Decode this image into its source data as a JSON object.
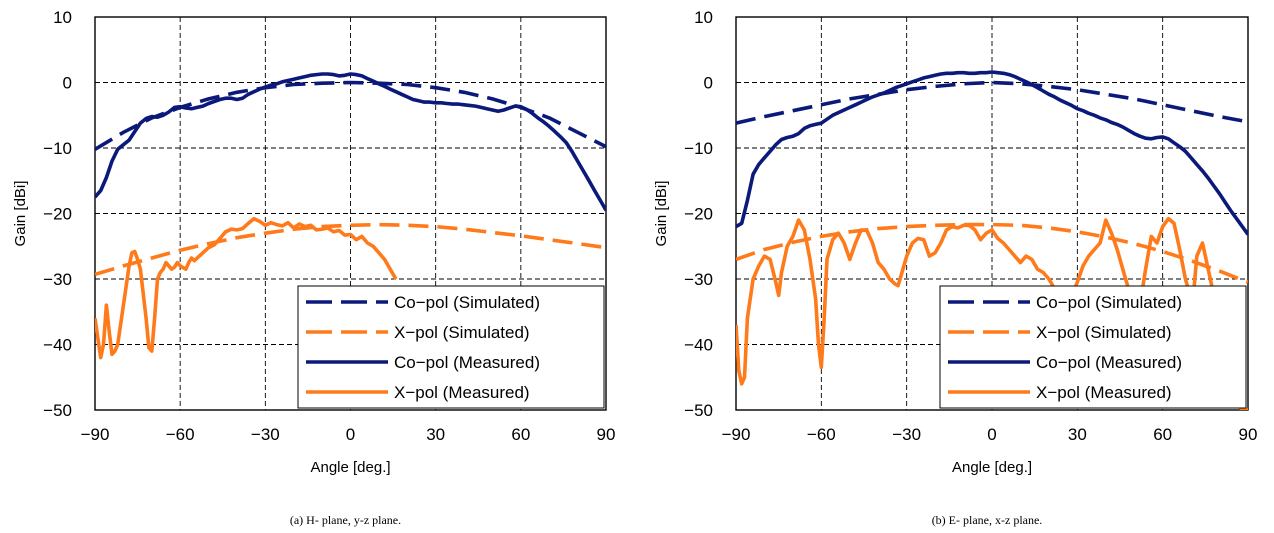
{
  "colors": {
    "co": "#0b1a7a",
    "x": "#ff7a1a",
    "grid": "#000000"
  },
  "chart_data": [
    {
      "type": "line",
      "caption": "(a)  H- plane, y-z plane.",
      "xlabel": "Angle [deg.]",
      "ylabel": "Gain [dBi]",
      "xlim": [
        -90,
        90
      ],
      "ylim": [
        -50,
        10
      ],
      "xticks": [
        -90,
        -60,
        -30,
        0,
        30,
        60,
        90
      ],
      "yticks": [
        10,
        0,
        -10,
        -20,
        -30,
        -40,
        -50
      ],
      "xtick_labels": [
        "−90",
        "−60",
        "−30",
        "0",
        "30",
        "60",
        "90"
      ],
      "ytick_labels": [
        "10",
        "0",
        "−10",
        "−20",
        "−30",
        "−40",
        "−50"
      ],
      "grid": true,
      "legend": {
        "position": "bottom-right"
      },
      "series": [
        {
          "name": "Co−pol (Simulated)",
          "color_key": "co",
          "style": "dashed",
          "x": [
            -90,
            -80,
            -70,
            -60,
            -50,
            -40,
            -30,
            -20,
            -10,
            0,
            10,
            20,
            30,
            40,
            50,
            60,
            70,
            80,
            90
          ],
          "y": [
            -10.2,
            -7.6,
            -5.4,
            -3.8,
            -2.5,
            -1.5,
            -0.8,
            -0.3,
            -0.1,
            0,
            -0.1,
            -0.3,
            -0.8,
            -1.5,
            -2.5,
            -3.8,
            -5.4,
            -7.6,
            -9.8
          ]
        },
        {
          "name": "X−pol (Simulated)",
          "color_key": "x",
          "style": "dashed",
          "x": [
            -90,
            -80,
            -70,
            -60,
            -50,
            -40,
            -30,
            -20,
            -10,
            0,
            10,
            20,
            30,
            40,
            50,
            60,
            70,
            80,
            90
          ],
          "y": [
            -29.3,
            -28,
            -26.8,
            -25.6,
            -24.6,
            -23.7,
            -23,
            -22.4,
            -22,
            -21.8,
            -21.7,
            -21.8,
            -22,
            -22.4,
            -22.9,
            -23.4,
            -24,
            -24.6,
            -25.2
          ]
        },
        {
          "name": "Co−pol (Measured)",
          "color_key": "co",
          "style": "solid",
          "x": [
            -90,
            -88,
            -86,
            -84,
            -82,
            -80,
            -78,
            -76,
            -74,
            -72,
            -70,
            -68,
            -66,
            -64,
            -62,
            -60,
            -58,
            -56,
            -54,
            -52,
            -50,
            -48,
            -46,
            -44,
            -42,
            -40,
            -38,
            -36,
            -34,
            -32,
            -30,
            -28,
            -26,
            -24,
            -22,
            -20,
            -18,
            -16,
            -14,
            -12,
            -10,
            -8,
            -6,
            -4,
            -2,
            0,
            2,
            4,
            6,
            8,
            10,
            12,
            14,
            16,
            18,
            20,
            22,
            24,
            26,
            28,
            30,
            32,
            34,
            36,
            38,
            40,
            42,
            44,
            46,
            48,
            50,
            52,
            54,
            56,
            58,
            60,
            62,
            64,
            66,
            68,
            70,
            72,
            74,
            76,
            78,
            80,
            82,
            84,
            86,
            88,
            90
          ],
          "y": [
            -17.5,
            -16.5,
            -14.5,
            -12,
            -10.2,
            -9.5,
            -8.8,
            -7.5,
            -6.2,
            -5.5,
            -5.2,
            -5.3,
            -5.0,
            -4.5,
            -3.8,
            -3.7,
            -3.9,
            -4.0,
            -3.8,
            -3.6,
            -3.2,
            -2.9,
            -2.6,
            -2.4,
            -2.4,
            -2.6,
            -2.4,
            -1.8,
            -1.4,
            -1.0,
            -0.7,
            -0.4,
            -0.2,
            0.1,
            0.3,
            0.5,
            0.7,
            0.9,
            1.1,
            1.2,
            1.3,
            1.3,
            1.2,
            1.0,
            1.1,
            1.3,
            1.2,
            1.0,
            0.6,
            0.2,
            -0.2,
            -0.6,
            -1.0,
            -1.4,
            -1.8,
            -2.2,
            -2.6,
            -2.8,
            -3.0,
            -3.0,
            -3.1,
            -3.1,
            -3.2,
            -3.3,
            -3.3,
            -3.4,
            -3.5,
            -3.6,
            -3.8,
            -4.0,
            -4.2,
            -4.4,
            -4.2,
            -3.9,
            -3.6,
            -3.7,
            -4.1,
            -4.7,
            -5.4,
            -6.0,
            -6.7,
            -7.5,
            -8.3,
            -9.2,
            -10.5,
            -12.0,
            -13.5,
            -15.0,
            -16.5,
            -18.0,
            -19.5
          ]
        },
        {
          "name": "X−pol (Measured)",
          "color_key": "x",
          "style": "solid",
          "x": [
            -90,
            -89,
            -88,
            -87,
            -86,
            -85,
            -84,
            -83,
            -82,
            -80,
            -78,
            -77,
            -76,
            -75,
            -74,
            -72,
            -71,
            -70,
            -69,
            -68,
            -67,
            -66,
            -65,
            -64,
            -63,
            -62,
            -61,
            -60,
            -58,
            -57,
            -56,
            -55,
            -54,
            -52,
            -50,
            -48,
            -46,
            -44,
            -42,
            -40,
            -38,
            -36,
            -34,
            -32,
            -30,
            -28,
            -26,
            -24,
            -22,
            -20,
            -18,
            -16,
            -14,
            -12,
            -10,
            -8,
            -6,
            -4,
            -2,
            0,
            2,
            4,
            6,
            8,
            10,
            12,
            14,
            16
          ],
          "y": [
            -36,
            -39,
            -42,
            -40,
            -34,
            -38,
            -41.5,
            -41,
            -40,
            -34,
            -28,
            -26,
            -25.8,
            -27,
            -28.5,
            -36,
            -40.5,
            -41,
            -36,
            -30,
            -29,
            -28.5,
            -27.5,
            -28,
            -28.5,
            -28.2,
            -27.5,
            -28,
            -28.5,
            -27.5,
            -26.8,
            -27.2,
            -26.8,
            -26,
            -25.2,
            -24.8,
            -23.8,
            -22.8,
            -22.4,
            -22.5,
            -22.3,
            -21.5,
            -20.8,
            -21.2,
            -21.8,
            -21.4,
            -21.7,
            -21.9,
            -21.4,
            -22.2,
            -21.6,
            -22.0,
            -21.8,
            -22.5,
            -22.4,
            -22.2,
            -22.8,
            -22.6,
            -23.3,
            -23.2,
            -24.0,
            -23.5,
            -24.5,
            -25.0,
            -26.0,
            -27.0,
            -28.5,
            -30.0
          ]
        }
      ]
    },
    {
      "type": "line",
      "caption": "(b)  E- plane, x-z plane.",
      "xlabel": "Angle [deg.]",
      "ylabel": "Gain [dBi]",
      "xlim": [
        -90,
        90
      ],
      "ylim": [
        -50,
        10
      ],
      "xticks": [
        -90,
        -60,
        -30,
        0,
        30,
        60,
        90
      ],
      "yticks": [
        10,
        0,
        -10,
        -20,
        -30,
        -40,
        -50
      ],
      "xtick_labels": [
        "−90",
        "−60",
        "−30",
        "0",
        "30",
        "60",
        "90"
      ],
      "ytick_labels": [
        "10",
        "0",
        "−10",
        "−20",
        "−30",
        "−40",
        "−50"
      ],
      "grid": true,
      "legend": {
        "position": "bottom-right"
      },
      "series": [
        {
          "name": "Co−pol (Simulated)",
          "color_key": "co",
          "style": "dashed",
          "x": [
            -90,
            -80,
            -70,
            -60,
            -50,
            -40,
            -30,
            -20,
            -10,
            0,
            10,
            20,
            30,
            40,
            50,
            60,
            70,
            80,
            90
          ],
          "y": [
            -6.2,
            -5.2,
            -4.3,
            -3.4,
            -2.5,
            -1.8,
            -1.1,
            -0.6,
            -0.2,
            0,
            -0.2,
            -0.6,
            -1.1,
            -1.8,
            -2.5,
            -3.4,
            -4.3,
            -5.2,
            -6.0
          ]
        },
        {
          "name": "X−pol (Simulated)",
          "color_key": "x",
          "style": "dashed",
          "x": [
            -90,
            -80,
            -70,
            -60,
            -50,
            -40,
            -30,
            -20,
            -10,
            0,
            10,
            20,
            30,
            40,
            50,
            60,
            70,
            80,
            90
          ],
          "y": [
            -27,
            -25.5,
            -24.4,
            -23.5,
            -22.8,
            -22.3,
            -22.0,
            -21.8,
            -21.7,
            -21.7,
            -21.8,
            -22.2,
            -22.8,
            -23.6,
            -24.6,
            -25.8,
            -27.2,
            -28.8,
            -30.5
          ]
        },
        {
          "name": "Co−pol (Measured)",
          "color_key": "co",
          "style": "solid",
          "x": [
            -90,
            -88,
            -86,
            -84,
            -82,
            -80,
            -78,
            -76,
            -74,
            -72,
            -70,
            -68,
            -66,
            -64,
            -62,
            -60,
            -58,
            -56,
            -54,
            -52,
            -50,
            -48,
            -46,
            -44,
            -42,
            -40,
            -38,
            -36,
            -34,
            -32,
            -30,
            -28,
            -26,
            -24,
            -22,
            -20,
            -18,
            -16,
            -14,
            -12,
            -10,
            -8,
            -6,
            -4,
            -2,
            0,
            2,
            4,
            6,
            8,
            10,
            12,
            14,
            16,
            18,
            20,
            22,
            24,
            26,
            28,
            30,
            32,
            34,
            36,
            38,
            40,
            42,
            44,
            46,
            48,
            50,
            52,
            54,
            56,
            58,
            60,
            62,
            64,
            66,
            68,
            70,
            72,
            74,
            76,
            78,
            80,
            82,
            84,
            86,
            88,
            90
          ],
          "y": [
            -22,
            -21.5,
            -18,
            -14,
            -12.5,
            -11.5,
            -10.5,
            -9.5,
            -8.7,
            -8.4,
            -8.2,
            -7.8,
            -7.0,
            -6.6,
            -6.4,
            -6.2,
            -5.6,
            -5.0,
            -4.6,
            -4.2,
            -3.8,
            -3.4,
            -3.0,
            -2.6,
            -2.2,
            -1.9,
            -1.6,
            -1.2,
            -0.8,
            -0.5,
            -0.2,
            0.1,
            0.4,
            0.7,
            0.9,
            1.1,
            1.3,
            1.4,
            1.4,
            1.5,
            1.5,
            1.4,
            1.4,
            1.5,
            1.5,
            1.6,
            1.5,
            1.4,
            1.2,
            0.9,
            0.5,
            0.1,
            -0.3,
            -0.8,
            -1.3,
            -1.8,
            -2.2,
            -2.7,
            -3.1,
            -3.5,
            -4.0,
            -4.3,
            -4.7,
            -5.0,
            -5.4,
            -5.7,
            -6.1,
            -6.4,
            -6.8,
            -7.3,
            -7.8,
            -8.2,
            -8.5,
            -8.6,
            -8.4,
            -8.3,
            -8.6,
            -9.2,
            -9.8,
            -10.5,
            -11.5,
            -12.5,
            -13.5,
            -14.6,
            -15.8,
            -17.0,
            -18.3,
            -19.6,
            -20.8,
            -22.0,
            -23.2
          ]
        },
        {
          "name": "X−pol (Measured)",
          "color_key": "x",
          "style": "solid",
          "x": [
            -90,
            -89,
            -88,
            -87,
            -86,
            -84,
            -82,
            -80,
            -78,
            -76,
            -75,
            -74,
            -72,
            -70,
            -68,
            -66,
            -64,
            -62,
            -61,
            -60,
            -59,
            -58,
            -56,
            -54,
            -52,
            -50,
            -48,
            -46,
            -44,
            -42,
            -40,
            -38,
            -36,
            -34,
            -33,
            -32,
            -30,
            -28,
            -26,
            -24,
            -22,
            -20,
            -18,
            -16,
            -14,
            -12,
            -10,
            -8,
            -6,
            -4,
            -2,
            0,
            2,
            4,
            6,
            8,
            10,
            12,
            14,
            16,
            18,
            20,
            22,
            24,
            26,
            28,
            30,
            32,
            34,
            36,
            38,
            40,
            42,
            44,
            46,
            48,
            50,
            51,
            52,
            54,
            56,
            58,
            60,
            62,
            64,
            66,
            68,
            70,
            71,
            72,
            74,
            76,
            78,
            80,
            82,
            84,
            86,
            88,
            90
          ],
          "y": [
            -37,
            -44,
            -46,
            -45,
            -36,
            -30,
            -28,
            -26.5,
            -27,
            -30.5,
            -32.5,
            -29,
            -25,
            -23.5,
            -21,
            -22.5,
            -27,
            -33,
            -40,
            -43.5,
            -36,
            -27,
            -24,
            -23,
            -24.5,
            -27,
            -24.5,
            -22.5,
            -22.6,
            -24.5,
            -27.5,
            -28.5,
            -30,
            -30.8,
            -31,
            -29.5,
            -26.5,
            -24.5,
            -23.8,
            -24.0,
            -26.5,
            -26.0,
            -24.5,
            -22.5,
            -22.0,
            -22.2,
            -21.8,
            -21.8,
            -22.5,
            -24.0,
            -23.0,
            -22.5,
            -23.8,
            -24.5,
            -25.5,
            -26.5,
            -27.5,
            -26.5,
            -27.0,
            -28.5,
            -29.0,
            -30.0,
            -31.5,
            -33.0,
            -33.5,
            -32.5,
            -30.5,
            -28.0,
            -26.5,
            -25.5,
            -24.5,
            -21.0,
            -23.0,
            -25.5,
            -28.5,
            -31.5,
            -34.0,
            -35.0,
            -34.0,
            -28.5,
            -23.5,
            -24.5,
            -22.0,
            -20.8,
            -21.5,
            -25.5,
            -30.0,
            -33.0,
            -31.5,
            -26.5,
            -24.5,
            -28.5,
            -32.5,
            -36.0,
            -40.5,
            -45.0,
            -49.0,
            -50.0,
            -50.0
          ]
        }
      ]
    }
  ]
}
